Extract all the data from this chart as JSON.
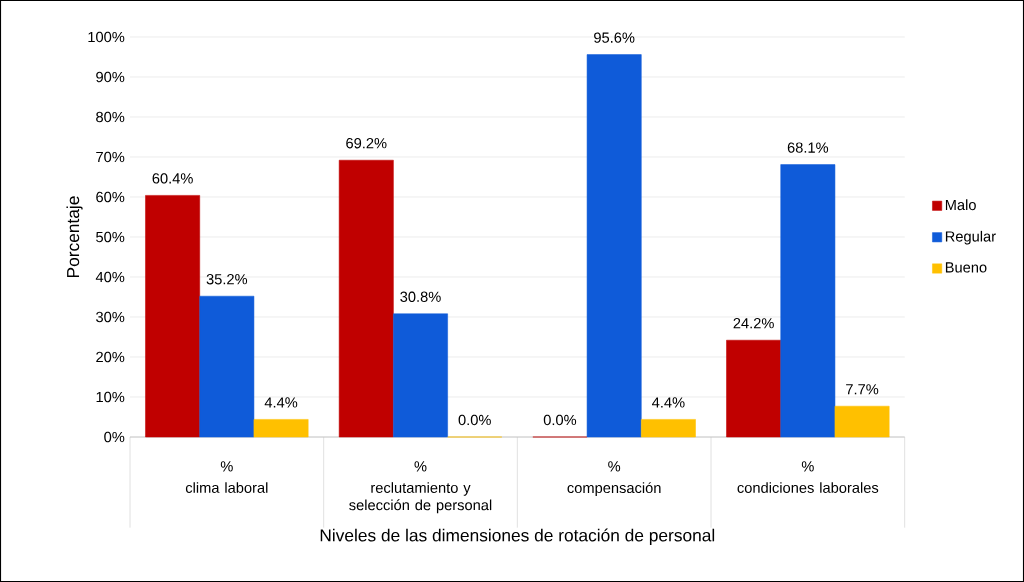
{
  "chart_data": {
    "type": "bar",
    "xlabel": "Niveles de las dimensiones de rotación de personal",
    "ylabel": "Porcentaje",
    "categories": [
      "clima laboral",
      "reclutamiento y selección de personal",
      "compensación",
      "condiciones laborales"
    ],
    "annotations": [
      "%",
      "%",
      "%",
      "%"
    ],
    "series": [
      {
        "name": "Malo",
        "color": "#c00000",
        "values": [
          60.4,
          69.2,
          0.0,
          24.2
        ],
        "value_labels": [
          "60.4%",
          "69.2%",
          "0.0%",
          "24.2%"
        ]
      },
      {
        "name": "Regular",
        "color": "#0f5bd9",
        "values": [
          35.2,
          30.8,
          95.6,
          68.1
        ],
        "value_labels": [
          "35.2%",
          "30.8%",
          "95.6%",
          "68.1%"
        ]
      },
      {
        "name": "Bueno",
        "color": "#ffc000",
        "values": [
          4.4,
          0.0,
          4.4,
          7.7
        ],
        "value_labels": [
          "4.4%",
          "0.0%",
          "4.4%",
          "7.7%"
        ]
      }
    ],
    "ylim": [
      0,
      100
    ],
    "yticks": [
      {
        "value": 0,
        "label": "0%"
      },
      {
        "value": 10,
        "label": "10%"
      },
      {
        "value": 20,
        "label": "20%"
      },
      {
        "value": 30,
        "label": "30%"
      },
      {
        "value": 40,
        "label": "40%"
      },
      {
        "value": 50,
        "label": "50%"
      },
      {
        "value": 60,
        "label": "60%"
      },
      {
        "value": 70,
        "label": "70%"
      },
      {
        "value": 80,
        "label": "80%"
      },
      {
        "value": 90,
        "label": "90%"
      },
      {
        "value": 100,
        "label": "100%"
      }
    ],
    "grid": "y",
    "legend": "right"
  }
}
